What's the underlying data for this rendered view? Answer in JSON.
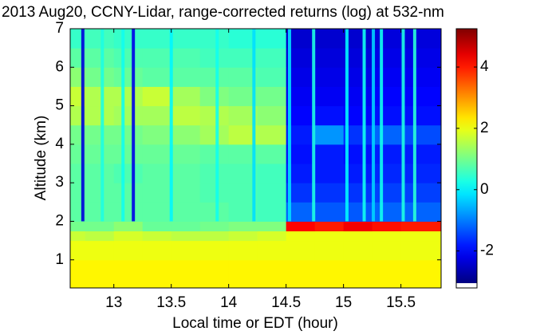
{
  "chart_data": {
    "type": "heatmap",
    "title": "2013 Aug20, CCNY-Lidar, range-corrected returns (log) at 532-nm",
    "x_label": "Local time or EDT (hour)",
    "y_label": "Altitude (km)",
    "colormap": "jet",
    "xlim": [
      12.62,
      15.85
    ],
    "xticks": [
      13,
      13.5,
      14,
      14.5,
      15,
      15.5
    ],
    "ylim": [
      0.27,
      7
    ],
    "yticks": [
      1,
      2,
      3,
      4,
      5,
      6,
      7
    ],
    "clim": [
      -3.05,
      5.25
    ],
    "cticks": [
      -2,
      0,
      2,
      4
    ],
    "xbins": [
      12.62,
      12.75,
      13.0,
      13.25,
      13.5,
      13.75,
      14.0,
      14.25,
      14.5,
      14.75,
      15.0,
      15.25,
      15.5,
      15.85
    ],
    "ybins": [
      0.27,
      1,
      1.5,
      1.75,
      2,
      2.5,
      3,
      3.5,
      4,
      4.5,
      5,
      5.5,
      6,
      6.5,
      7
    ],
    "z": [
      [
        2.2,
        2.2,
        2.2,
        2.2,
        2.2,
        2.2,
        2.2,
        2.2,
        2.2,
        2.2,
        2.2,
        2.2,
        2.2
      ],
      [
        2.0,
        2.0,
        2.0,
        2.0,
        2.0,
        2.0,
        2.0,
        2.0,
        2.0,
        2.0,
        2.0,
        2.0,
        2.0
      ],
      [
        1.7,
        1.6,
        1.8,
        1.7,
        1.6,
        1.6,
        1.7,
        1.8,
        2.0,
        2.0,
        2.0,
        2.0,
        2.0
      ],
      [
        1.0,
        1.0,
        1.2,
        0.9,
        0.9,
        1.0,
        1.1,
        1.1,
        4.2,
        4.0,
        4.3,
        4.1,
        4.0
      ],
      [
        0.8,
        0.8,
        0.8,
        0.8,
        0.8,
        0.8,
        0.7,
        0.6,
        -1.2,
        -1.3,
        -1.3,
        -1.2,
        -1.2
      ],
      [
        0.8,
        0.8,
        0.8,
        0.8,
        0.8,
        0.7,
        0.7,
        0.6,
        -1.6,
        -1.6,
        -1.6,
        -1.5,
        -1.5
      ],
      [
        0.8,
        0.8,
        0.7,
        0.8,
        0.8,
        0.7,
        0.7,
        0.6,
        -1.8,
        -1.8,
        -1.8,
        -1.7,
        -1.7
      ],
      [
        0.9,
        0.9,
        0.9,
        0.9,
        0.9,
        0.8,
        0.8,
        0.8,
        -1.9,
        -1.8,
        -1.9,
        -1.8,
        -1.8
      ],
      [
        1.0,
        1.0,
        1.0,
        1.1,
        1.2,
        1.4,
        1.6,
        1.5,
        -1.8,
        -0.8,
        -1.6,
        -1.2,
        -1.4
      ],
      [
        1.5,
        1.5,
        1.4,
        1.4,
        1.6,
        1.5,
        1.4,
        1.2,
        -2.0,
        -1.9,
        -2.0,
        -1.9,
        -1.9
      ],
      [
        1.7,
        1.5,
        1.5,
        1.7,
        1.4,
        1.1,
        1.0,
        1.0,
        -2.1,
        -2.1,
        -2.1,
        -2.0,
        -2.0
      ],
      [
        1.2,
        1.0,
        0.9,
        0.8,
        0.8,
        0.8,
        0.8,
        0.7,
        -2.2,
        -2.2,
        -2.2,
        -2.1,
        -2.1
      ],
      [
        0.8,
        0.8,
        0.7,
        0.7,
        0.7,
        0.6,
        0.6,
        0.6,
        -2.3,
        -2.3,
        -2.3,
        -2.2,
        -2.2
      ],
      [
        0.5,
        0.6,
        0.5,
        0.5,
        0.5,
        0.5,
        0.4,
        0.4,
        -2.4,
        -2.4,
        -2.4,
        -2.3,
        -2.3
      ]
    ],
    "stripes": [
      {
        "x": 12.73,
        "value": -2.3
      },
      {
        "x": 12.9,
        "value": 0.3
      },
      {
        "x": 13.08,
        "value": 0.2
      },
      {
        "x": 13.17,
        "value": -2.2
      },
      {
        "x": 13.5,
        "value": 0.0
      },
      {
        "x": 13.9,
        "value": 0.2
      },
      {
        "x": 14.22,
        "value": -0.2
      },
      {
        "x": 14.53,
        "value": -0.2
      },
      {
        "x": 14.74,
        "value": 0.3
      },
      {
        "x": 15.03,
        "value": 0.0
      },
      {
        "x": 15.18,
        "value": 0.2
      },
      {
        "x": 15.26,
        "value": -0.3
      },
      {
        "x": 15.33,
        "value": 0.2
      },
      {
        "x": 15.52,
        "value": 0.3
      },
      {
        "x": 15.62,
        "value": 0.4
      }
    ]
  }
}
